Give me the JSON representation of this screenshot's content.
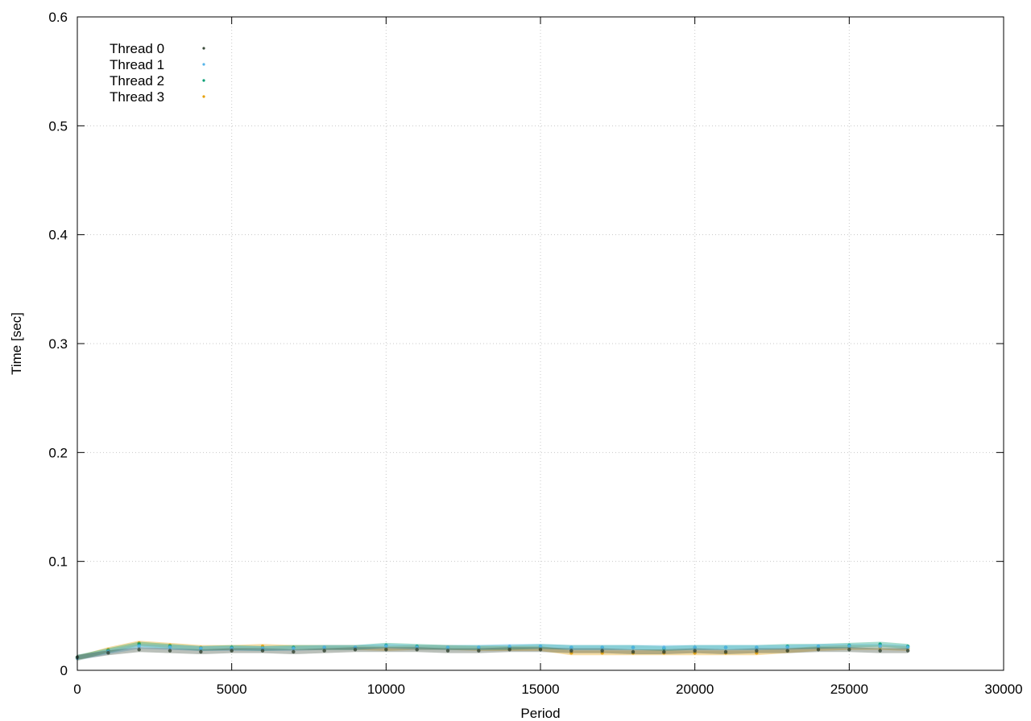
{
  "chart_data": {
    "type": "scatter",
    "xlabel": "Period",
    "ylabel": "Time [sec]",
    "xlim": [
      0,
      30000
    ],
    "ylim": [
      0,
      0.6
    ],
    "xticks": [
      0,
      5000,
      10000,
      15000,
      20000,
      25000,
      30000
    ],
    "yticks": [
      0,
      0.1,
      0.2,
      0.3,
      0.4,
      0.5,
      0.6
    ],
    "xtick_labels": [
      "0",
      "5000",
      "10000",
      "15000",
      "20000",
      "25000",
      "30000"
    ],
    "ytick_labels": [
      "0",
      "0.1",
      "0.2",
      "0.3",
      "0.4",
      "0.5",
      "0.6"
    ],
    "grid": true,
    "legend_position": "top-left",
    "series": [
      {
        "name": "Thread 0",
        "color": "#3a4a3a",
        "x": [
          0,
          1000,
          2000,
          3000,
          4000,
          5000,
          6000,
          7000,
          8000,
          9000,
          10000,
          11000,
          12000,
          13000,
          14000,
          15000,
          16000,
          17000,
          18000,
          19000,
          20000,
          21000,
          22000,
          23000,
          24000,
          25000,
          26000,
          26900
        ],
        "y": [
          0.012,
          0.016,
          0.019,
          0.018,
          0.017,
          0.018,
          0.018,
          0.017,
          0.018,
          0.019,
          0.019,
          0.019,
          0.018,
          0.018,
          0.019,
          0.019,
          0.018,
          0.018,
          0.017,
          0.017,
          0.018,
          0.017,
          0.018,
          0.018,
          0.019,
          0.019,
          0.018,
          0.018
        ]
      },
      {
        "name": "Thread 1",
        "color": "#56b4e9",
        "x": [
          0,
          1000,
          2000,
          3000,
          4000,
          5000,
          6000,
          7000,
          8000,
          9000,
          10000,
          11000,
          12000,
          13000,
          14000,
          15000,
          16000,
          17000,
          18000,
          19000,
          20000,
          21000,
          22000,
          23000,
          24000,
          25000,
          26000,
          26900
        ],
        "y": [
          0.011,
          0.017,
          0.022,
          0.021,
          0.02,
          0.02,
          0.02,
          0.02,
          0.021,
          0.021,
          0.022,
          0.021,
          0.021,
          0.021,
          0.022,
          0.022,
          0.021,
          0.021,
          0.021,
          0.021,
          0.021,
          0.021,
          0.021,
          0.021,
          0.022,
          0.022,
          0.022,
          0.021
        ]
      },
      {
        "name": "Thread 2",
        "color": "#009e73",
        "x": [
          0,
          1000,
          2000,
          3000,
          4000,
          5000,
          6000,
          7000,
          8000,
          9000,
          10000,
          11000,
          12000,
          13000,
          14000,
          15000,
          16000,
          17000,
          18000,
          19000,
          20000,
          21000,
          22000,
          23000,
          24000,
          25000,
          26000,
          26900
        ],
        "y": [
          0.012,
          0.018,
          0.024,
          0.022,
          0.02,
          0.021,
          0.02,
          0.021,
          0.021,
          0.021,
          0.023,
          0.022,
          0.021,
          0.021,
          0.021,
          0.022,
          0.021,
          0.021,
          0.021,
          0.02,
          0.021,
          0.021,
          0.021,
          0.022,
          0.022,
          0.023,
          0.024,
          0.022
        ]
      },
      {
        "name": "Thread 3",
        "color": "#e69f00",
        "x": [
          0,
          1000,
          2000,
          3000,
          4000,
          5000,
          6000,
          7000,
          8000,
          9000,
          10000,
          11000,
          12000,
          13000,
          14000,
          15000,
          16000,
          17000,
          18000,
          19000,
          20000,
          21000,
          22000,
          23000,
          24000,
          25000,
          26000,
          26900
        ],
        "y": [
          0.011,
          0.019,
          0.025,
          0.023,
          0.021,
          0.021,
          0.022,
          0.021,
          0.021,
          0.021,
          0.02,
          0.021,
          0.021,
          0.02,
          0.02,
          0.02,
          0.016,
          0.016,
          0.016,
          0.016,
          0.016,
          0.016,
          0.016,
          0.018,
          0.02,
          0.021,
          0.021,
          0.02
        ]
      }
    ]
  }
}
